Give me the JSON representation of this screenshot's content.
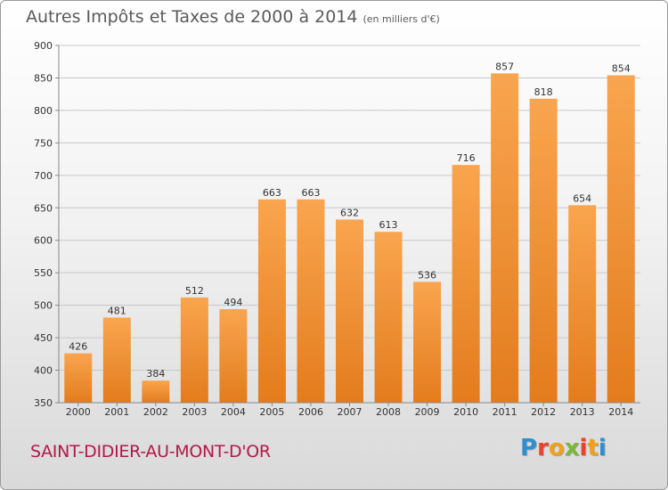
{
  "title": "Autres Impôts et Taxes de 2000 à 2014",
  "subtitle": "(en milliers d'€)",
  "city": "SAINT-DIDIER-AU-MONT-D'OR",
  "logo": {
    "letters": [
      "P",
      "r",
      "o",
      "x",
      "i",
      "t",
      "i"
    ],
    "colors": [
      "#2f8fce",
      "#e8432b",
      "#f0a11a",
      "#7ab83a",
      "#e8432b",
      "#f0a11a",
      "#2f8fce"
    ]
  },
  "colors": {
    "bar_light": "#f9a54f",
    "bar_dark": "#e37c1d",
    "grid": "#c8c8c8",
    "title": "#5a5a5a",
    "city": "#b5174a"
  },
  "chart_data": {
    "type": "bar",
    "categories": [
      "2000",
      "2001",
      "2002",
      "2003",
      "2004",
      "2005",
      "2006",
      "2007",
      "2008",
      "2009",
      "2010",
      "2011",
      "2012",
      "2013",
      "2014"
    ],
    "values": [
      426,
      481,
      384,
      512,
      494,
      663,
      663,
      632,
      613,
      536,
      716,
      857,
      818,
      654,
      854
    ],
    "title": "Autres Impôts et Taxes de 2000 à 2014",
    "subtitle": "(en milliers d'€)",
    "ylim": [
      350,
      900
    ],
    "yticks": [
      350,
      400,
      450,
      500,
      550,
      600,
      650,
      700,
      750,
      800,
      850,
      900
    ],
    "grid": true
  }
}
